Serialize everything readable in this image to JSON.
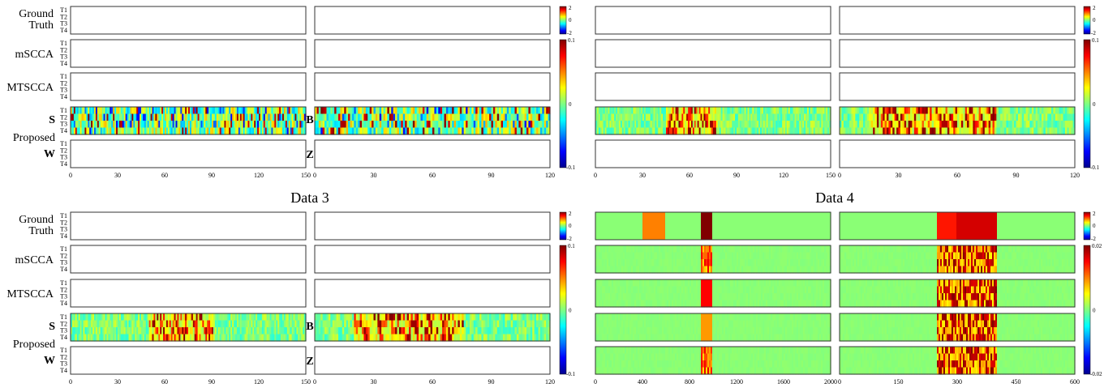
{
  "figure": {
    "titles": [
      "Data 3",
      "Data 4"
    ],
    "row_labels": [
      "Ground\nTruth",
      "mSCCA",
      "MTSCCA",
      "S",
      "Proposed",
      "W"
    ],
    "side_labels": [
      "B",
      "Z"
    ],
    "task_labels": [
      "T1",
      "T2",
      "T3",
      "T4"
    ]
  },
  "colors": {
    "heatmap_base": "#8cf56e",
    "border": "#333333",
    "empty_fill": "#ffffff"
  },
  "colormap": "jet",
  "chart_data": [
    {
      "type": "heatmap",
      "panel": "top-left",
      "rows": [
        "Ground Truth",
        "mSCCA",
        "MTSCCA",
        "S",
        "W"
      ],
      "left": {
        "xlim": [
          0,
          150
        ],
        "xticks": [
          0,
          30,
          60,
          90,
          120,
          150
        ]
      },
      "right": {
        "xlim": [
          0,
          120
        ],
        "xticks": [
          0,
          30,
          60,
          90,
          120
        ]
      },
      "colorbars": [
        {
          "rows": "Ground Truth",
          "ticks": [
            "2",
            "0",
            "-2"
          ]
        },
        {
          "rows": "mSCCA-W",
          "ticks": [
            "0.1",
            "0",
            "-0.1"
          ]
        }
      ],
      "filled_rows": [
        "S"
      ],
      "pattern": "noisy small values across all features"
    },
    {
      "type": "heatmap",
      "panel": "top-right",
      "rows": [
        "Ground Truth",
        "mSCCA",
        "MTSCCA",
        "S",
        "W"
      ],
      "left": {
        "xlim": [
          0,
          150
        ],
        "xticks": [
          0,
          30,
          60,
          90,
          120,
          150
        ]
      },
      "right": {
        "xlim": [
          0,
          120
        ],
        "xticks": [
          0,
          30,
          60,
          90,
          120
        ]
      },
      "colorbars": [
        {
          "rows": "Ground Truth",
          "ticks": [
            "2",
            "0",
            "-2"
          ]
        },
        {
          "rows": "mSCCA-W",
          "ticks": [
            "0.1",
            "0",
            "-0.1"
          ]
        }
      ],
      "filled_rows": [
        "S"
      ],
      "strong_ranges": {
        "left": [
          [
            45,
            78
          ]
        ],
        "right": [
          [
            15,
            80
          ]
        ]
      }
    },
    {
      "type": "heatmap",
      "panel": "bottom-left",
      "title": "Data 3",
      "rows": [
        "Ground Truth",
        "mSCCA",
        "MTSCCA",
        "S",
        "W"
      ],
      "left": {
        "xlim": [
          0,
          150
        ],
        "xticks": [
          0,
          30,
          60,
          90,
          120,
          150
        ]
      },
      "right": {
        "xlim": [
          0,
          120
        ],
        "xticks": [
          0,
          30,
          60,
          90,
          120
        ]
      },
      "colorbars": [
        {
          "rows": "Ground Truth",
          "ticks": [
            "2",
            "0",
            "-2"
          ]
        },
        {
          "rows": "mSCCA-W",
          "ticks": [
            "0.1",
            "0",
            "-0.1"
          ]
        }
      ],
      "filled_rows": [
        "S"
      ],
      "strong_ranges": {
        "left": [
          [
            50,
            91
          ]
        ],
        "right": [
          [
            20,
            76
          ]
        ]
      }
    },
    {
      "type": "heatmap",
      "panel": "bottom-right",
      "title": "Data 4",
      "rows": [
        "Ground Truth",
        "mSCCA",
        "MTSCCA",
        "S",
        "W"
      ],
      "left": {
        "xlim": [
          0,
          2000
        ],
        "xticks": [
          0,
          400,
          800,
          1200,
          1600,
          2000
        ]
      },
      "right": {
        "xlim": [
          0,
          600
        ],
        "xticks": [
          0,
          150,
          300,
          450,
          600
        ]
      },
      "colorbars": [
        {
          "rows": "Ground Truth",
          "ticks": [
            "2",
            "0",
            "-2"
          ]
        },
        {
          "rows": "mSCCA-W",
          "ticks": [
            "0.02",
            "0",
            "-0.02"
          ]
        }
      ],
      "filled_rows": [
        "Ground Truth",
        "mSCCA",
        "MTSCCA",
        "S",
        "W"
      ],
      "ground_truth_blocks": {
        "left": [
          {
            "range": [
              400,
              600
            ],
            "value": 1.2
          },
          {
            "range": [
              900,
              1000
            ],
            "value": 2.4
          }
        ],
        "right": [
          {
            "range": [
              250,
              300
            ],
            "value": 1.7
          },
          {
            "range": [
              300,
              400
            ],
            "value": 2.0
          }
        ]
      },
      "strong_ranges": {
        "left": [
          [
            900,
            1000
          ]
        ],
        "right": [
          [
            250,
            400
          ]
        ]
      }
    }
  ]
}
